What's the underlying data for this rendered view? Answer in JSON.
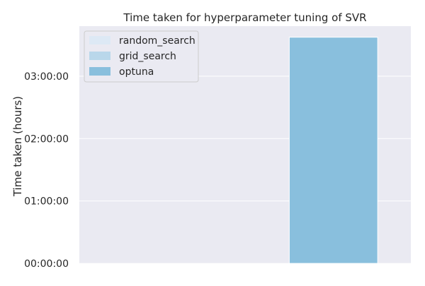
{
  "chart_data": {
    "type": "bar",
    "title": "Time taken for hyperparameter tuning of SVR",
    "xlabel": "",
    "ylabel": "Time taken (hours)",
    "ylim_seconds": [
      0,
      13690
    ],
    "yticks": [
      {
        "seconds": 0,
        "label": "00:00:00"
      },
      {
        "seconds": 3600,
        "label": "01:00:00"
      },
      {
        "seconds": 7200,
        "label": "02:00:00"
      },
      {
        "seconds": 10800,
        "label": "03:00:00"
      }
    ],
    "series": [
      {
        "name": "random_search",
        "value_seconds": 0,
        "color": "#dde9f5"
      },
      {
        "name": "grid_search",
        "value_seconds": 0,
        "color": "#b9d7ea"
      },
      {
        "name": "optuna",
        "value_seconds": 13050,
        "color": "#89bfdd"
      }
    ],
    "legend_position": "top-left",
    "grid": true,
    "background": "#eaeaf2"
  }
}
